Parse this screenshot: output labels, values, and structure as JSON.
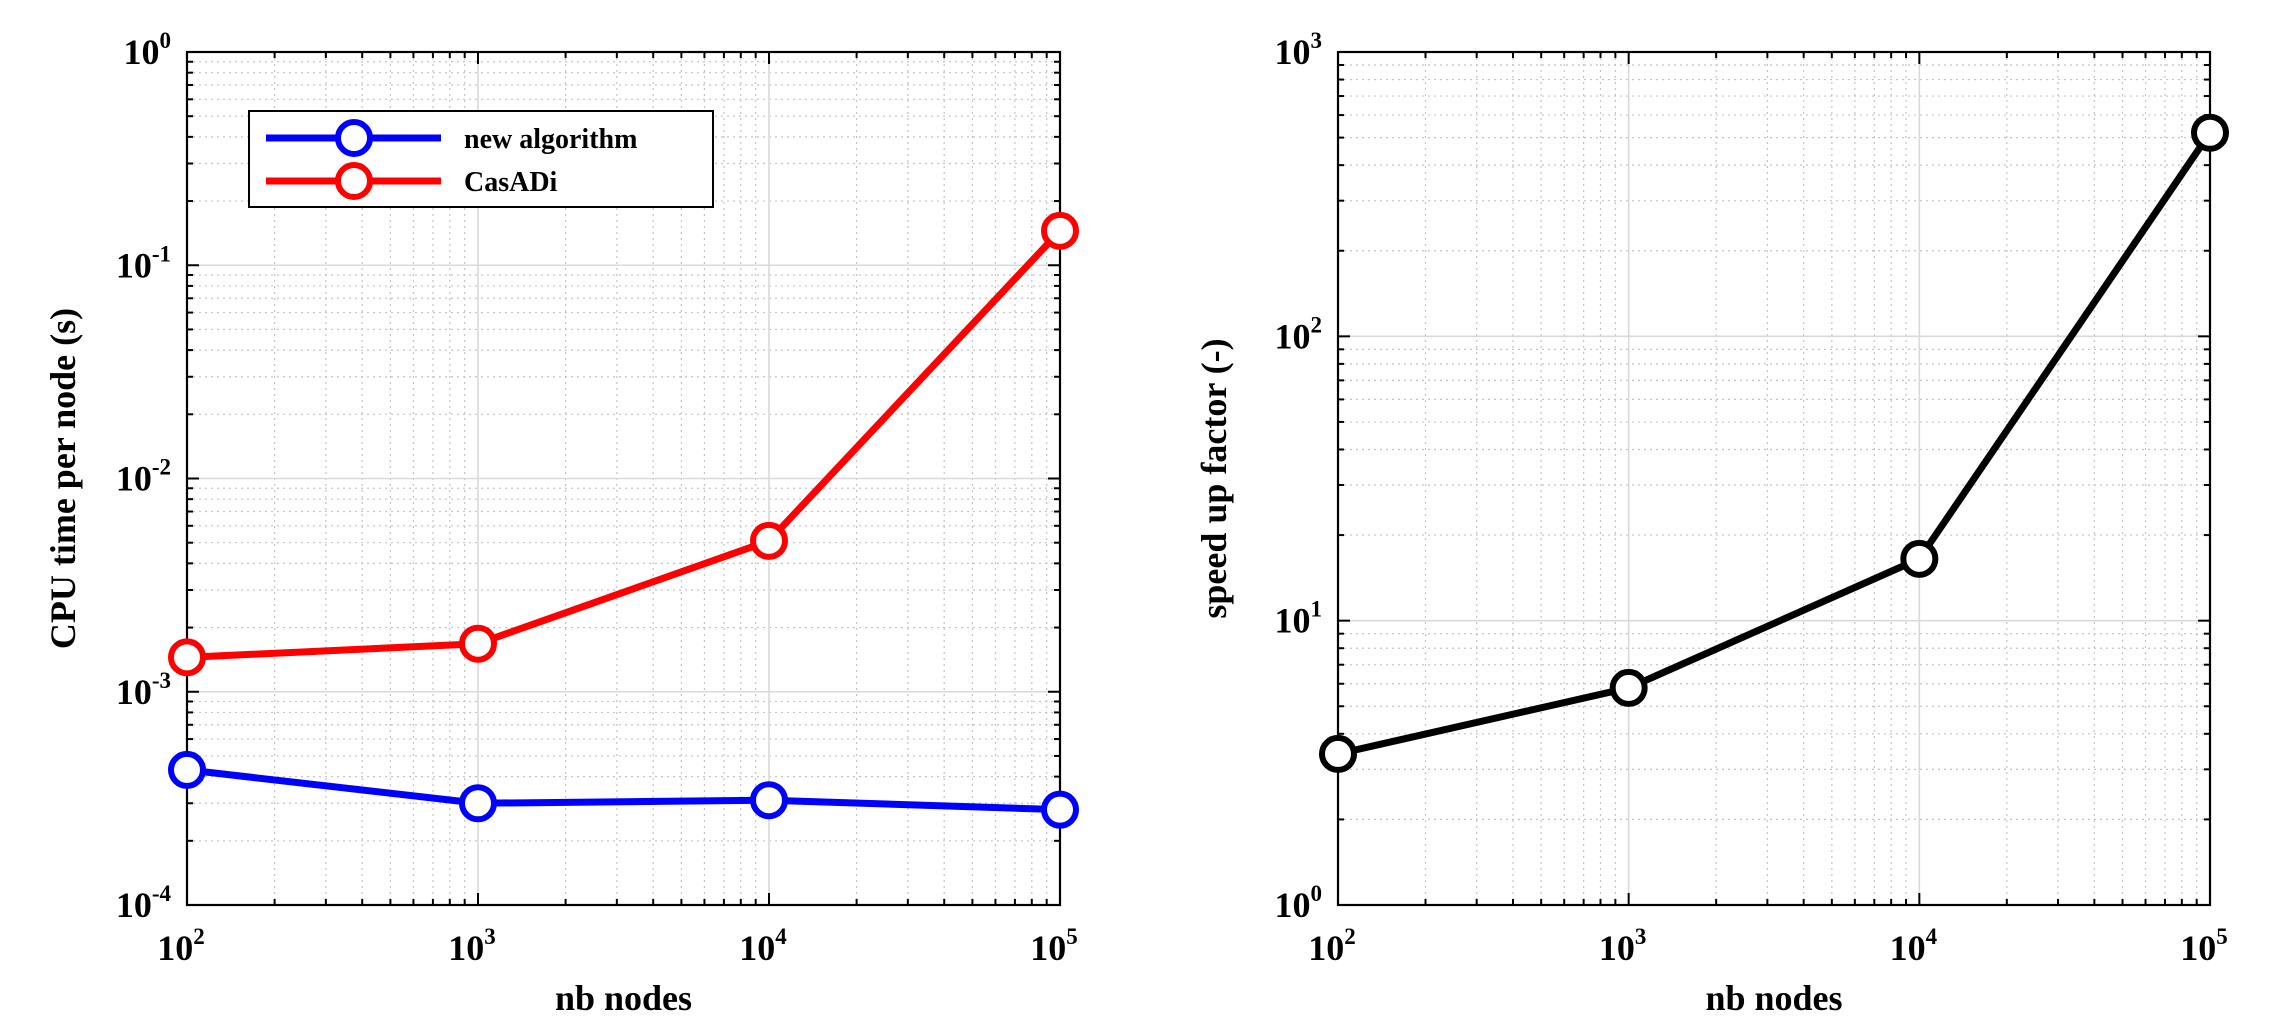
{
  "chart_data": [
    {
      "type": "line",
      "x": [
        100,
        1000,
        10000,
        100000
      ],
      "xscale": "log",
      "yscale": "log",
      "xlim": [
        100,
        100000
      ],
      "ylim": [
        0.0001,
        1
      ],
      "xlabel": "nb nodes",
      "ylabel": "CPU time per node (s)",
      "x_ticks": [
        {
          "base": "10",
          "exp": "2"
        },
        {
          "base": "10",
          "exp": "3"
        },
        {
          "base": "10",
          "exp": "4"
        },
        {
          "base": "10",
          "exp": "5"
        }
      ],
      "y_ticks": [
        {
          "base": "10",
          "exp": "-4"
        },
        {
          "base": "10",
          "exp": "-3"
        },
        {
          "base": "10",
          "exp": "-2"
        },
        {
          "base": "10",
          "exp": "-1"
        },
        {
          "base": "10",
          "exp": "0"
        }
      ],
      "grid": true,
      "minor_grid": true,
      "legend": "top-left",
      "series": [
        {
          "name": "new algorithm",
          "color": "#0000ff",
          "marker": "circle",
          "values": [
            0.00043,
            0.0003,
            0.00031,
            0.00028
          ]
        },
        {
          "name": "CasADi",
          "color": "#ff0000",
          "marker": "circle",
          "values": [
            0.00145,
            0.00168,
            0.0051,
            0.145
          ]
        }
      ]
    },
    {
      "type": "line",
      "x": [
        100,
        1000,
        10000,
        100000
      ],
      "xscale": "log",
      "yscale": "log",
      "xlim": [
        100,
        100000
      ],
      "ylim": [
        1,
        1000
      ],
      "xlabel": "nb nodes",
      "ylabel": "speed up factor (-)",
      "x_ticks": [
        {
          "base": "10",
          "exp": "2"
        },
        {
          "base": "10",
          "exp": "3"
        },
        {
          "base": "10",
          "exp": "4"
        },
        {
          "base": "10",
          "exp": "5"
        }
      ],
      "y_ticks": [
        {
          "base": "10",
          "exp": "0"
        },
        {
          "base": "10",
          "exp": "1"
        },
        {
          "base": "10",
          "exp": "2"
        },
        {
          "base": "10",
          "exp": "3"
        }
      ],
      "grid": true,
      "minor_grid": true,
      "legend": "none",
      "series": [
        {
          "color": "#000000",
          "marker": "circle",
          "values": [
            3.4,
            5.8,
            16.5,
            520
          ]
        }
      ]
    }
  ]
}
